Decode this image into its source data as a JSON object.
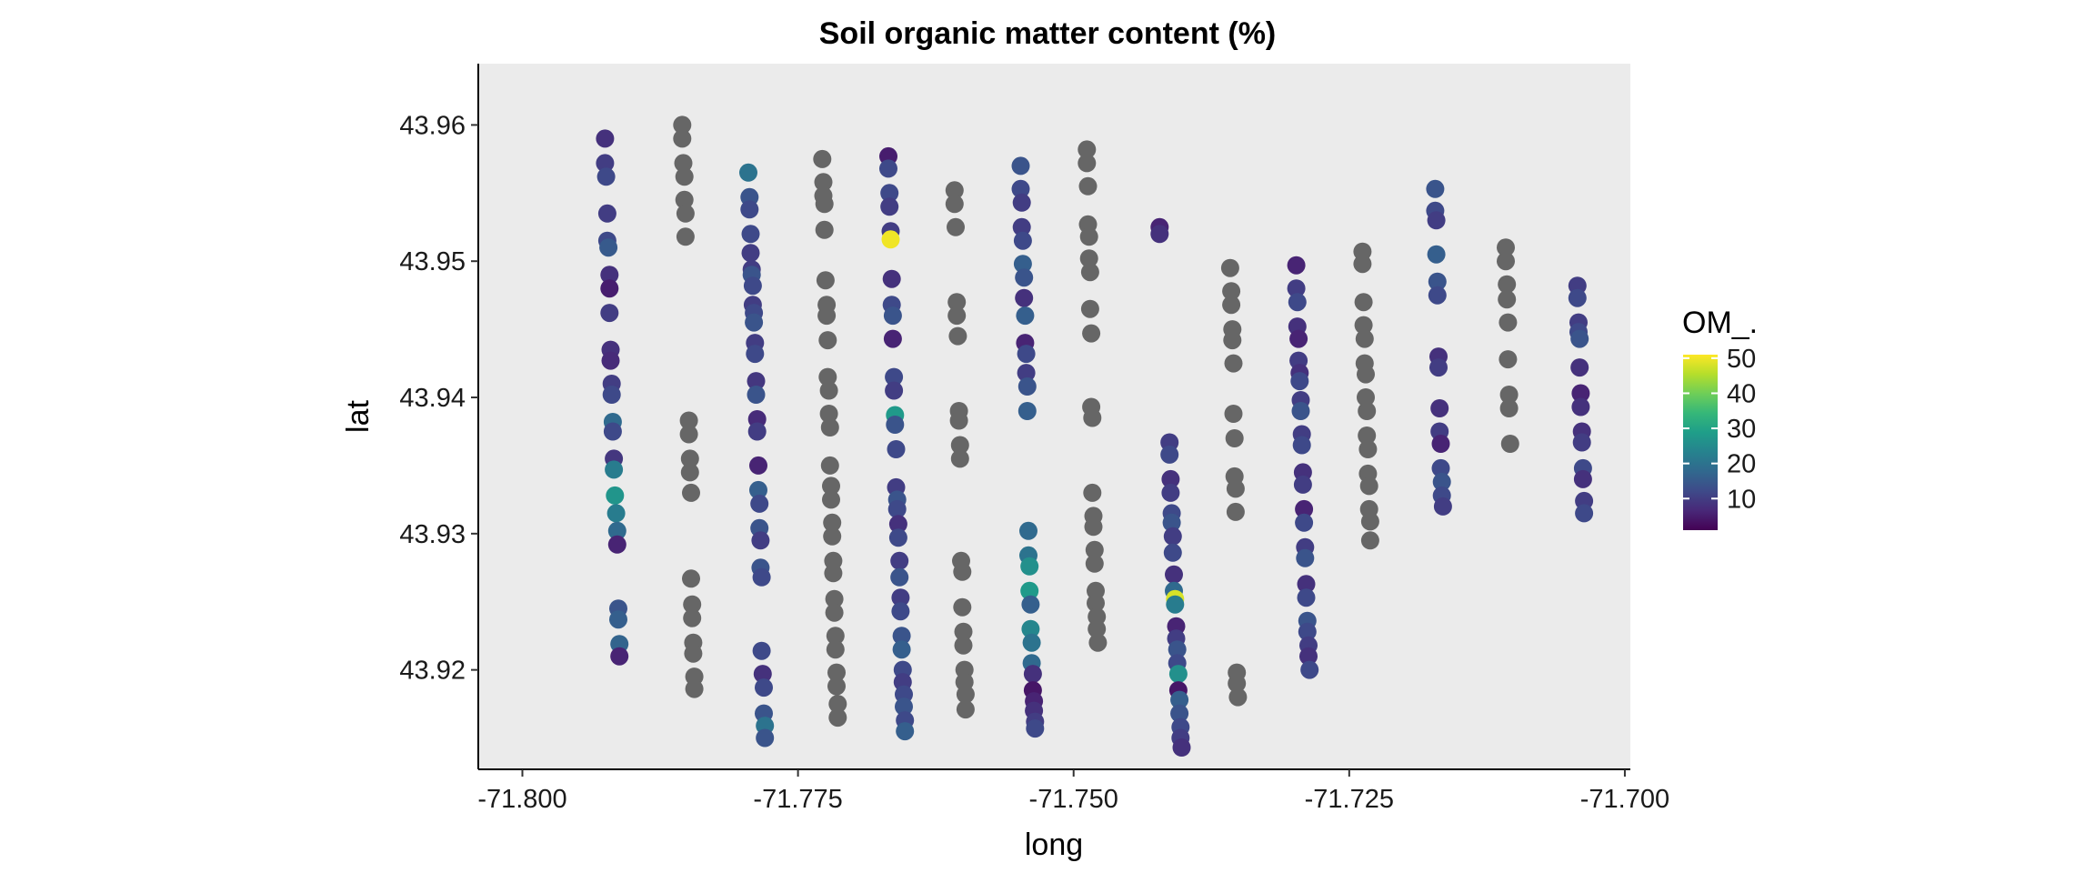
{
  "chart_data": {
    "type": "scatter",
    "title": "Soil organic matter content (%)",
    "xlabel": "long",
    "ylabel": "lat",
    "xlim": [
      -71.804,
      -71.6995
    ],
    "ylim": [
      43.9127,
      43.9645
    ],
    "x_ticks": [
      -71.8,
      -71.775,
      -71.75,
      -71.725,
      -71.7
    ],
    "x_tick_labels": [
      "-71.800",
      "-71.775",
      "-71.750",
      "-71.725",
      "-71.700"
    ],
    "y_ticks": [
      43.92,
      43.93,
      43.94,
      43.95,
      43.96
    ],
    "y_tick_labels": [
      "43.92",
      "43.93",
      "43.94",
      "43.95",
      "43.96"
    ],
    "grid": false,
    "panel_background": "#ebebeb",
    "na_color": "#666666",
    "legend": {
      "title": "OM_.",
      "placement": "right",
      "ticks": [
        10,
        20,
        30,
        40,
        50
      ],
      "tick_labels": [
        "10",
        "20",
        "30",
        "40",
        "50"
      ],
      "range": [
        1,
        51
      ],
      "colors": [
        "#440154",
        "#482878",
        "#3e4a89",
        "#31688e",
        "#26828e",
        "#1f9e89",
        "#35b779",
        "#6ece58",
        "#b5de2b",
        "#fde725"
      ]
    },
    "series": [
      {
        "x": [
          -71.7925,
          -71.7925,
          -71.7924,
          -71.7923,
          -71.7923,
          -71.7922,
          -71.7921,
          -71.7921,
          -71.7921,
          -71.792,
          -71.792,
          -71.7919,
          -71.7919,
          -71.7918,
          -71.7918,
          -71.7917,
          -71.7917,
          -71.7916,
          -71.7915,
          -71.7914,
          -71.7914,
          -71.7913,
          -71.7913,
          -71.7912,
          -71.7912
        ],
        "y": [
          43.959,
          43.9572,
          43.9562,
          43.9535,
          43.9515,
          43.951,
          43.949,
          43.948,
          43.9462,
          43.9435,
          43.9427,
          43.941,
          43.9402,
          43.9382,
          43.9375,
          43.9355,
          43.9347,
          43.9328,
          43.9315,
          43.9302,
          43.9292,
          43.9245,
          43.9237,
          43.9219,
          43.921
        ],
        "v": [
          8,
          10,
          12,
          10,
          12,
          15,
          8,
          5,
          10,
          8,
          7,
          10,
          12,
          18,
          12,
          9,
          22,
          27,
          22,
          18,
          6,
          14,
          16,
          17,
          6
        ]
      },
      {
        "x": [
          -71.7855,
          -71.7855,
          -71.7854,
          -71.7853,
          -71.7853,
          -71.7852,
          -71.7852,
          -71.7849,
          -71.7849,
          -71.7848,
          -71.7848,
          -71.7847,
          -71.7847,
          -71.7846,
          -71.7846,
          -71.7845,
          -71.7845,
          -71.7844,
          -71.7844
        ],
        "y": [
          43.96,
          43.959,
          43.9572,
          43.9562,
          43.9545,
          43.9535,
          43.9518,
          43.9383,
          43.9373,
          43.9355,
          43.9345,
          43.933,
          43.9267,
          43.9248,
          43.9238,
          43.922,
          43.9212,
          43.9195,
          43.9186
        ],
        "v": []
      },
      {
        "x": [
          -71.7795,
          -71.7794,
          -71.7794,
          -71.7793,
          -71.7793,
          -71.7792,
          -71.7792,
          -71.7791,
          -71.7791,
          -71.779,
          -71.779,
          -71.7789,
          -71.7789,
          -71.7788,
          -71.7788,
          -71.7787,
          -71.7787,
          -71.7786,
          -71.7786,
          -71.7785,
          -71.7785,
          -71.7784,
          -71.7784,
          -71.7783,
          -71.7783,
          -71.7782,
          -71.7781,
          -71.7781,
          -71.778,
          -71.778
        ],
        "y": [
          43.9565,
          43.9547,
          43.9538,
          43.952,
          43.9506,
          43.9494,
          43.949,
          43.9482,
          43.9468,
          43.9462,
          43.9455,
          43.944,
          43.9432,
          43.9412,
          43.9402,
          43.9384,
          43.9375,
          43.935,
          43.9332,
          43.9322,
          43.9304,
          43.9295,
          43.9275,
          43.9268,
          43.9214,
          43.9197,
          43.9187,
          43.9168,
          43.9159,
          43.915
        ],
        "v": [
          20,
          14,
          12,
          12,
          10,
          10,
          14,
          12,
          10,
          12,
          14,
          10,
          12,
          9,
          14,
          7,
          10,
          6,
          16,
          12,
          14,
          10,
          14,
          12,
          12,
          8,
          12,
          14,
          20,
          14
        ]
      },
      {
        "x": [
          -71.7728,
          -71.7727,
          -71.7727,
          -71.7726,
          -71.7726,
          -71.7725,
          -71.7724,
          -71.7724,
          -71.7723,
          -71.7723,
          -71.7722,
          -71.7722,
          -71.7721,
          -71.7721,
          -71.772,
          -71.772,
          -71.7719,
          -71.7719,
          -71.7718,
          -71.7718,
          -71.7717,
          -71.7717,
          -71.7716,
          -71.7716,
          -71.7715,
          -71.7715,
          -71.7714,
          -71.7714
        ],
        "y": [
          43.9575,
          43.9558,
          43.9548,
          43.9542,
          43.9523,
          43.9486,
          43.9468,
          43.946,
          43.9442,
          43.9415,
          43.9405,
          43.9388,
          43.9378,
          43.935,
          43.9335,
          43.9325,
          43.9308,
          43.9298,
          43.928,
          43.9271,
          43.9252,
          43.9242,
          43.9225,
          43.9215,
          43.9198,
          43.9188,
          43.9175,
          43.9165
        ],
        "v": []
      },
      {
        "x": [
          -71.7668,
          -71.7668,
          -71.7667,
          -71.7667,
          -71.7666,
          -71.7666,
          -71.7665,
          -71.7665,
          -71.7664,
          -71.7664,
          -71.7663,
          -71.7663,
          -71.7662,
          -71.7662,
          -71.7661,
          -71.7661,
          -71.766,
          -71.766,
          -71.7659,
          -71.7659,
          -71.7658,
          -71.7658,
          -71.7657,
          -71.7657,
          -71.7656,
          -71.7656,
          -71.7655,
          -71.7655,
          -71.7654,
          -71.7654,
          -71.7653,
          -71.7653
        ],
        "y": [
          43.9577,
          43.9568,
          43.955,
          43.954,
          43.9522,
          43.9516,
          43.9487,
          43.9468,
          43.946,
          43.9443,
          43.9415,
          43.9405,
          43.9387,
          43.938,
          43.9362,
          43.9334,
          43.9325,
          43.9318,
          43.9307,
          43.9297,
          43.928,
          43.9268,
          43.9253,
          43.9243,
          43.9225,
          43.9215,
          43.92,
          43.9191,
          43.9182,
          43.9173,
          43.9163,
          43.9155
        ],
        "v": [
          5,
          12,
          12,
          10,
          10,
          50,
          8,
          12,
          14,
          6,
          12,
          10,
          28,
          14,
          12,
          10,
          14,
          12,
          8,
          12,
          10,
          14,
          10,
          12,
          14,
          16,
          12,
          10,
          12,
          14,
          12,
          16
        ]
      },
      {
        "x": [
          -71.7608,
          -71.7608,
          -71.7607,
          -71.7606,
          -71.7606,
          -71.7605,
          -71.7604,
          -71.7604,
          -71.7603,
          -71.7603,
          -71.7602,
          -71.7601,
          -71.7601,
          -71.76,
          -71.76,
          -71.7599,
          -71.7599,
          -71.7598,
          -71.7598
        ],
        "y": [
          43.9552,
          43.9542,
          43.9525,
          43.947,
          43.946,
          43.9445,
          43.939,
          43.9383,
          43.9365,
          43.9355,
          43.928,
          43.9272,
          43.9246,
          43.9228,
          43.9218,
          43.92,
          43.9191,
          43.9182,
          43.9171
        ],
        "v": []
      },
      {
        "x": [
          -71.7548,
          -71.7548,
          -71.7547,
          -71.7547,
          -71.7546,
          -71.7546,
          -71.7545,
          -71.7545,
          -71.7544,
          -71.7544,
          -71.7543,
          -71.7543,
          -71.7542,
          -71.7542,
          -71.7541,
          -71.7541,
          -71.754,
          -71.754,
          -71.7539,
          -71.7539,
          -71.7538,
          -71.7538,
          -71.7537,
          -71.7537,
          -71.7536,
          -71.7536,
          -71.7535,
          -71.7535
        ],
        "y": [
          43.957,
          43.9553,
          43.9543,
          43.9525,
          43.9515,
          43.9498,
          43.9488,
          43.9473,
          43.946,
          43.944,
          43.9432,
          43.9418,
          43.9408,
          43.939,
          43.9302,
          43.9284,
          43.9276,
          43.9258,
          43.9248,
          43.923,
          43.922,
          43.9205,
          43.9197,
          43.9185,
          43.9177,
          43.917,
          43.9162,
          43.9157
        ],
        "v": [
          14,
          12,
          10,
          10,
          12,
          16,
          14,
          8,
          16,
          6,
          12,
          10,
          14,
          16,
          18,
          20,
          26,
          28,
          16,
          24,
          20,
          18,
          8,
          4,
          6,
          8,
          10,
          12
        ]
      },
      {
        "x": [
          -71.7488,
          -71.7488,
          -71.7487,
          -71.7487,
          -71.7486,
          -71.7486,
          -71.7485,
          -71.7485,
          -71.7484,
          -71.7484,
          -71.7483,
          -71.7483,
          -71.7482,
          -71.7482,
          -71.7481,
          -71.7481,
          -71.748,
          -71.748,
          -71.7479,
          -71.7479,
          -71.7478
        ],
        "y": [
          43.9582,
          43.9572,
          43.9555,
          43.9527,
          43.9518,
          43.9502,
          43.9492,
          43.9465,
          43.9447,
          43.9393,
          43.9385,
          43.933,
          43.9313,
          43.9305,
          43.9288,
          43.9278,
          43.9258,
          43.9249,
          43.9239,
          43.923,
          43.922
        ],
        "v": []
      },
      {
        "x": [
          -71.7422,
          -71.7422,
          -71.7413,
          -71.7413,
          -71.7412,
          -71.7412,
          -71.7411,
          -71.7411,
          -71.741,
          -71.741,
          -71.7409,
          -71.7409,
          -71.7408,
          -71.7408,
          -71.7407,
          -71.7407,
          -71.7406,
          -71.7406,
          -71.7405,
          -71.7405,
          -71.7404,
          -71.7404,
          -71.7403,
          -71.7403,
          -71.7402
        ],
        "y": [
          43.9525,
          43.952,
          43.9367,
          43.9358,
          43.934,
          43.933,
          43.9315,
          43.9308,
          43.9298,
          43.9286,
          43.927,
          43.9258,
          43.9252,
          43.9248,
          43.9232,
          43.9223,
          43.9215,
          43.9205,
          43.9197,
          43.9185,
          43.9178,
          43.9168,
          43.9158,
          43.915,
          43.9143
        ],
        "v": [
          6,
          8,
          10,
          12,
          8,
          10,
          12,
          14,
          10,
          12,
          8,
          18,
          48,
          22,
          6,
          10,
          14,
          12,
          26,
          4,
          16,
          14,
          12,
          10,
          8
        ]
      },
      {
        "x": [
          -71.7358,
          -71.7357,
          -71.7357,
          -71.7356,
          -71.7356,
          -71.7355,
          -71.7355,
          -71.7354,
          -71.7354,
          -71.7353,
          -71.7353,
          -71.7352,
          -71.7352,
          -71.7351
        ],
        "y": [
          43.9495,
          43.9478,
          43.9468,
          43.945,
          43.9442,
          43.9425,
          43.9388,
          43.937,
          43.9342,
          43.9333,
          43.9316,
          43.9198,
          43.919,
          43.918
        ],
        "v": []
      },
      {
        "x": [
          -71.7298,
          -71.7298,
          -71.7297,
          -71.7297,
          -71.7296,
          -71.7296,
          -71.7295,
          -71.7295,
          -71.7294,
          -71.7294,
          -71.7293,
          -71.7293,
          -71.7292,
          -71.7292,
          -71.7291,
          -71.7291,
          -71.729,
          -71.729,
          -71.7289,
          -71.7289,
          -71.7288,
          -71.7288,
          -71.7287,
          -71.7287,
          -71.7286
        ],
        "y": [
          43.9497,
          43.948,
          43.947,
          43.9452,
          43.9443,
          43.9427,
          43.9418,
          43.9412,
          43.9398,
          43.939,
          43.9373,
          43.9365,
          43.9345,
          43.9336,
          43.9318,
          43.9308,
          43.929,
          43.9282,
          43.9263,
          43.9253,
          43.9236,
          43.9228,
          43.9218,
          43.921,
          43.92
        ],
        "v": [
          6,
          10,
          12,
          8,
          6,
          10,
          8,
          12,
          10,
          14,
          10,
          12,
          8,
          10,
          6,
          12,
          10,
          14,
          8,
          12,
          14,
          12,
          10,
          8,
          12
        ]
      },
      {
        "x": [
          -71.7238,
          -71.7238,
          -71.7237,
          -71.7237,
          -71.7236,
          -71.7236,
          -71.7235,
          -71.7235,
          -71.7234,
          -71.7234,
          -71.7233,
          -71.7233,
          -71.7232,
          -71.7232,
          -71.7231,
          -71.7231
        ],
        "y": [
          43.9507,
          43.9498,
          43.947,
          43.9453,
          43.9443,
          43.9425,
          43.9417,
          43.94,
          43.939,
          43.9372,
          43.9362,
          43.9344,
          43.9335,
          43.9318,
          43.9309,
          43.9295
        ],
        "v": []
      },
      {
        "x": [
          -71.7172,
          -71.7172,
          -71.7171,
          -71.7171,
          -71.717,
          -71.717,
          -71.7169,
          -71.7169,
          -71.7168,
          -71.7168,
          -71.7167,
          -71.7167,
          -71.7166,
          -71.7166,
          -71.7165
        ],
        "y": [
          43.9553,
          43.9537,
          43.953,
          43.9505,
          43.9485,
          43.9475,
          43.943,
          43.9422,
          43.9392,
          43.9375,
          43.9366,
          43.9348,
          43.9338,
          43.9328,
          43.932
        ],
        "v": [
          14,
          12,
          10,
          16,
          14,
          12,
          8,
          10,
          8,
          10,
          6,
          12,
          14,
          12,
          10
        ]
      },
      {
        "x": [
          -71.7108,
          -71.7108,
          -71.7107,
          -71.7107,
          -71.7106,
          -71.7106,
          -71.7105,
          -71.7105,
          -71.7104
        ],
        "y": [
          43.951,
          43.95,
          43.9483,
          43.9472,
          43.9455,
          43.9428,
          43.9402,
          43.9392,
          43.9366
        ],
        "v": []
      },
      {
        "x": [
          -71.7043,
          -71.7043,
          -71.7042,
          -71.7042,
          -71.7041,
          -71.7041,
          -71.704,
          -71.704,
          -71.7039,
          -71.7039,
          -71.7038,
          -71.7038,
          -71.7037,
          -71.7037
        ],
        "y": [
          43.9482,
          43.9473,
          43.9455,
          43.9448,
          43.9443,
          43.9422,
          43.9403,
          43.9393,
          43.9375,
          43.9367,
          43.9348,
          43.934,
          43.9324,
          43.9315
        ],
        "v": [
          10,
          12,
          10,
          12,
          14,
          8,
          6,
          8,
          8,
          10,
          12,
          8,
          10,
          12
        ]
      }
    ]
  }
}
